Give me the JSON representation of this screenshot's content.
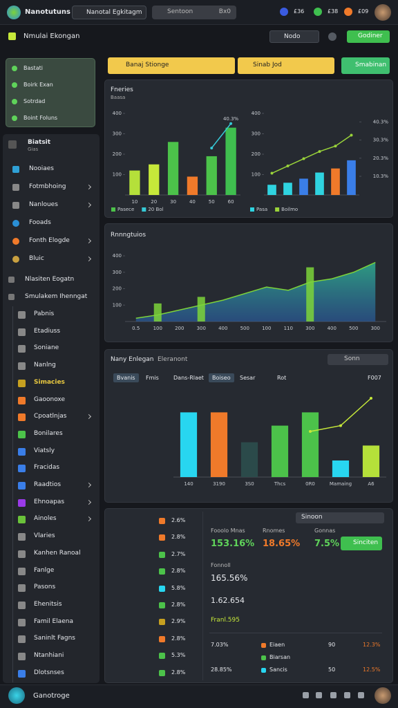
{
  "topbar": {
    "brand": "Nanotutuns",
    "workspace": "Nanotal Egkitagm",
    "search": "Sentoon",
    "search_hint": "Bx0",
    "badges": [
      "£36",
      "£38",
      "£09"
    ]
  },
  "subbar": {
    "title": "Nmulai Ekongan",
    "select": "Nodo",
    "button": "Godiner"
  },
  "filters": {
    "first": "Banaj Stionge",
    "second": "Sinab Jod",
    "button": "Smabinan"
  },
  "sidebar": {
    "quick": [
      "Bastati",
      "Boirk Exan",
      "Sotrdad",
      "Boint Foluns"
    ],
    "section": "Biatsit",
    "section_sub": "Gias",
    "items": [
      "Nooiaes",
      "Fotmbhoing",
      "Nanloues",
      "Fooads",
      "Fonth Elogde",
      "Bluic"
    ],
    "groups": [
      "Nlasiten Eogatn",
      "Smulakem Ihenngat"
    ],
    "subitems": [
      "Pabnis",
      "Etadiuss",
      "Soniane",
      "Nanlng",
      "Simacies",
      "Gaoonoxe",
      "Cpoatlnjas",
      "Bonilares",
      "Viatsly",
      "Fracidas",
      "Raadtios",
      "Ehnoapas",
      "Ainoles",
      "Vlaries",
      "Kanhen Ranoal",
      "Fanlge",
      "Pasons",
      "Ehenitsis",
      "Famil Elaena",
      "Saninlt Fagns",
      "Ntanhiani",
      "Dlotsnses"
    ]
  },
  "footer": {
    "label": "Ganotroge"
  },
  "chart_data": [
    {
      "type": "combo",
      "title": "Fneries",
      "subtitle": "Baasa",
      "annotation": "40.3%",
      "categories": [
        "10",
        "20",
        "30",
        "40",
        "50",
        "60"
      ],
      "ylim": [
        0,
        400
      ],
      "yticks": [
        100,
        200,
        300,
        400
      ],
      "series": [
        {
          "name": "Pasece",
          "type": "bar",
          "color": "#4cc24a",
          "colors": [
            "#b5e03a",
            "#c6e83a",
            "#4cc24a",
            "#f07a2a",
            "#4cc24a",
            "#3fbf4f"
          ],
          "values": [
            120,
            150,
            260,
            90,
            190,
            330
          ]
        },
        {
          "name": "20 Bol",
          "type": "line",
          "color": "#36c9d6",
          "values": [
            null,
            null,
            null,
            null,
            230,
            350
          ]
        }
      ]
    },
    {
      "type": "combo",
      "categories": [
        null,
        null,
        null,
        null,
        null,
        null
      ],
      "ylim": [
        0,
        400
      ],
      "yticks": [
        100,
        200,
        300,
        400
      ],
      "y2lim": [
        0,
        45
      ],
      "y2ticks": [
        {
          "value": 10.3,
          "label": "10.3%"
        },
        {
          "value": 20.3,
          "label": "20.3%"
        },
        {
          "value": 30.3,
          "label": "30.3%"
        },
        {
          "value": 40.3,
          "label": "40.3%"
        }
      ],
      "series": [
        {
          "name": "Pasa",
          "type": "bar",
          "color": "#2fd3e0",
          "colors": [
            "#2fd3e0",
            "#2fd3e0",
            "#3a7ee8",
            "#2fd3e0",
            "#f07a2a",
            "#3a7ee8"
          ],
          "values": [
            50,
            60,
            80,
            110,
            130,
            170
          ]
        },
        {
          "name": "Boilmo",
          "type": "line",
          "axis": "y2",
          "color": "#9ad43a",
          "values": [
            12,
            16,
            20,
            24,
            27,
            33
          ]
        }
      ]
    },
    {
      "type": "area",
      "title": "Rnnngtuios",
      "categories": [
        "0.5",
        "100",
        "200",
        "300",
        "400",
        "500",
        "100",
        "110",
        "300",
        "400",
        "500",
        "300"
      ],
      "ylim": [
        0,
        400
      ],
      "yticks": [
        100,
        200,
        300,
        400
      ],
      "series": [
        {
          "type": "area",
          "color": "#2fa88a",
          "values": [
            20,
            40,
            70,
            100,
            130,
            170,
            210,
            190,
            240,
            260,
            300,
            360
          ]
        },
        {
          "type": "bar",
          "color": "#7dd33a",
          "values": [
            null,
            110,
            null,
            150,
            null,
            null,
            null,
            null,
            330,
            null,
            null,
            null
          ]
        }
      ]
    },
    {
      "type": "combo",
      "title": "Nany Enlegan",
      "subtitle": "Eleranont",
      "select": "Sonn",
      "tabs": [
        "Bvanis",
        "Fmis",
        "Dans-Rlaet",
        "Boiseo",
        "Sesar",
        "Rot",
        "F007"
      ],
      "categories": [
        "140",
        "3190",
        "3S0",
        "Thcs",
        "0R0",
        "Mamaing",
        "A6"
      ],
      "ylim": [
        0,
        100
      ],
      "series": [
        {
          "type": "bar",
          "color": "#28d6f0",
          "colors": [
            "#28d6f0",
            "#f07a2a",
            "#2b4a4a",
            "#4cc24a",
            "#4cc24a",
            "#28d6f0",
            "#b5e03a"
          ],
          "values": [
            78,
            78,
            42,
            62,
            78,
            20,
            38
          ]
        },
        {
          "type": "line",
          "color": "#c6e83a",
          "values": [
            null,
            null,
            null,
            null,
            55,
            62,
            95
          ]
        }
      ]
    }
  ],
  "summary": {
    "list": [
      "2.6%",
      "2.8%",
      "2.7%",
      "2.8%",
      "5.8%",
      "2.8%",
      "2.9%",
      "2.8%",
      "5.3%",
      "2.8%"
    ],
    "select": "Sinoon",
    "stats": [
      {
        "label": "Fooolo Mnas",
        "value": "153.16%"
      },
      {
        "label": "Rnomes",
        "value": "18.65%"
      },
      {
        "label": "Gonnas",
        "value": "7.5%"
      }
    ],
    "button": "Sinciten",
    "total_label": "Fonnoll",
    "total": "165.56%",
    "count": "1.62.654",
    "note": "Franl.595",
    "rows": [
      [
        "7.03%",
        "Eiaen",
        "90",
        "12.3%"
      ],
      [
        "",
        "Biarsan",
        "",
        ""
      ],
      [
        "28.85%",
        "Sancis",
        "50",
        "12.5%"
      ]
    ]
  }
}
